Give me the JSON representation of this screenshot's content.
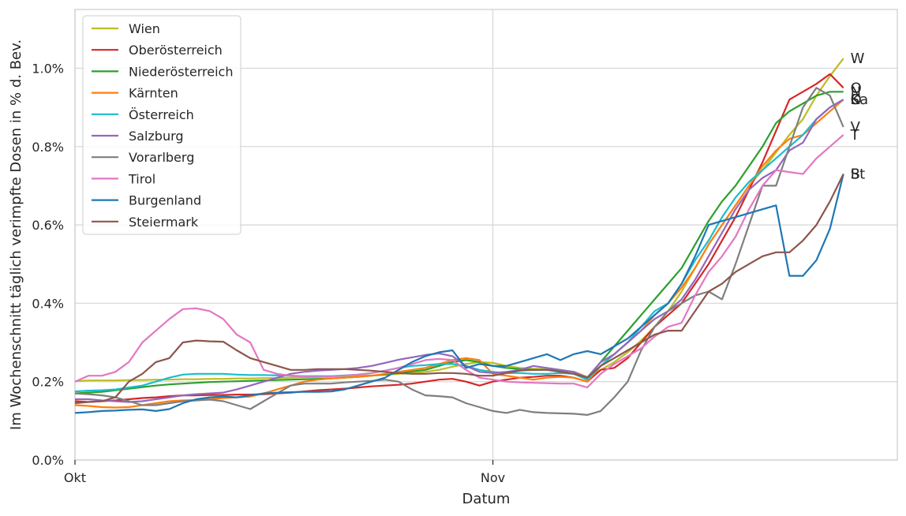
{
  "chart_data": {
    "type": "line",
    "xlabel": "Datum",
    "ylabel": "Im Wochenschnitt täglich verimpfte Dosen in % d. Bev.",
    "x_start": "2021-10-01",
    "x_end": "2021-12-01",
    "ylim": [
      0,
      1.15
    ],
    "yticks": [
      0.0,
      0.2,
      0.4,
      0.6,
      0.8,
      1.0
    ],
    "ytick_labels": [
      "0.0%",
      "0.2%",
      "0.4%",
      "0.6%",
      "0.8%",
      "1.0%"
    ],
    "xticks": [
      {
        "date": "2021-10-01",
        "label": "Okt"
      },
      {
        "date": "2021-11-01",
        "label": "Nov"
      }
    ],
    "grid": true,
    "legend_position": "top-left",
    "x": [
      "2021-10-01",
      "2021-10-02",
      "2021-10-03",
      "2021-10-04",
      "2021-10-05",
      "2021-10-06",
      "2021-10-07",
      "2021-10-08",
      "2021-10-09",
      "2021-10-10",
      "2021-10-11",
      "2021-10-12",
      "2021-10-13",
      "2021-10-14",
      "2021-10-15",
      "2021-10-16",
      "2021-10-17",
      "2021-10-18",
      "2021-10-19",
      "2021-10-20",
      "2021-10-21",
      "2021-10-22",
      "2021-10-23",
      "2021-10-24",
      "2021-10-25",
      "2021-10-26",
      "2021-10-27",
      "2021-10-28",
      "2021-10-29",
      "2021-10-30",
      "2021-10-31",
      "2021-11-01",
      "2021-11-02",
      "2021-11-03",
      "2021-11-04",
      "2021-11-05",
      "2021-11-06",
      "2021-11-07",
      "2021-11-08",
      "2021-11-09",
      "2021-11-10",
      "2021-11-11",
      "2021-11-12",
      "2021-11-13",
      "2021-11-14",
      "2021-11-15",
      "2021-11-16",
      "2021-11-17",
      "2021-11-18",
      "2021-11-19",
      "2021-11-20",
      "2021-11-21",
      "2021-11-22",
      "2021-11-23",
      "2021-11-24",
      "2021-11-25",
      "2021-11-26",
      "2021-11-27"
    ],
    "series": [
      {
        "name": "Wien",
        "color": "#bcbd22",
        "end_label": "W",
        "values": [
          0.201,
          0.203,
          0.203,
          0.203,
          0.204,
          0.204,
          0.205,
          0.205,
          0.206,
          0.206,
          0.207,
          0.207,
          0.208,
          0.208,
          0.209,
          0.209,
          0.21,
          0.211,
          0.212,
          0.213,
          0.214,
          0.215,
          0.216,
          0.218,
          0.22,
          0.222,
          0.225,
          0.23,
          0.238,
          0.245,
          0.25,
          0.248,
          0.24,
          0.235,
          0.233,
          0.232,
          0.23,
          0.225,
          0.212,
          0.23,
          0.25,
          0.275,
          0.305,
          0.34,
          0.38,
          0.43,
          0.49,
          0.55,
          0.6,
          0.65,
          0.7,
          0.74,
          0.785,
          0.83,
          0.87,
          0.93,
          0.98,
          1.025
        ]
      },
      {
        "name": "Oberösterreich",
        "color": "#d62728",
        "end_label": "O",
        "values": [
          0.15,
          0.148,
          0.15,
          0.152,
          0.155,
          0.158,
          0.16,
          0.163,
          0.165,
          0.165,
          0.166,
          0.166,
          0.167,
          0.167,
          0.168,
          0.17,
          0.172,
          0.175,
          0.178,
          0.18,
          0.182,
          0.185,
          0.188,
          0.19,
          0.192,
          0.195,
          0.2,
          0.205,
          0.207,
          0.2,
          0.19,
          0.2,
          0.205,
          0.21,
          0.212,
          0.215,
          0.215,
          0.21,
          0.2,
          0.23,
          0.235,
          0.26,
          0.3,
          0.34,
          0.37,
          0.4,
          0.45,
          0.5,
          0.56,
          0.62,
          0.69,
          0.76,
          0.84,
          0.92,
          0.94,
          0.96,
          0.985,
          0.95
        ]
      },
      {
        "name": "Niederösterreich",
        "color": "#2ca02c",
        "end_label": "N",
        "values": [
          0.17,
          0.172,
          0.174,
          0.178,
          0.182,
          0.186,
          0.19,
          0.193,
          0.195,
          0.197,
          0.199,
          0.2,
          0.201,
          0.202,
          0.203,
          0.204,
          0.205,
          0.206,
          0.207,
          0.208,
          0.21,
          0.212,
          0.215,
          0.218,
          0.222,
          0.226,
          0.23,
          0.24,
          0.25,
          0.255,
          0.25,
          0.24,
          0.235,
          0.232,
          0.23,
          0.23,
          0.228,
          0.225,
          0.21,
          0.25,
          0.29,
          0.33,
          0.37,
          0.41,
          0.45,
          0.49,
          0.55,
          0.61,
          0.66,
          0.7,
          0.75,
          0.8,
          0.86,
          0.89,
          0.91,
          0.93,
          0.94,
          0.94
        ]
      },
      {
        "name": "Kärnten",
        "color": "#ff7f0e",
        "end_label": "K",
        "values": [
          0.14,
          0.138,
          0.135,
          0.134,
          0.135,
          0.14,
          0.145,
          0.15,
          0.152,
          0.153,
          0.155,
          0.158,
          0.16,
          0.162,
          0.17,
          0.18,
          0.19,
          0.2,
          0.205,
          0.208,
          0.21,
          0.212,
          0.215,
          0.22,
          0.225,
          0.23,
          0.235,
          0.245,
          0.255,
          0.26,
          0.255,
          0.22,
          0.215,
          0.21,
          0.205,
          0.21,
          0.212,
          0.21,
          0.2,
          0.24,
          0.27,
          0.3,
          0.33,
          0.37,
          0.4,
          0.44,
          0.49,
          0.55,
          0.6,
          0.65,
          0.7,
          0.75,
          0.79,
          0.82,
          0.83,
          0.86,
          0.89,
          0.92
        ]
      },
      {
        "name": "Österreich",
        "color": "#17becf",
        "end_label": "Ö",
        "values": [
          0.175,
          0.177,
          0.178,
          0.18,
          0.185,
          0.19,
          0.2,
          0.21,
          0.218,
          0.22,
          0.22,
          0.22,
          0.218,
          0.217,
          0.217,
          0.216,
          0.215,
          0.214,
          0.214,
          0.214,
          0.216,
          0.218,
          0.222,
          0.228,
          0.235,
          0.24,
          0.242,
          0.245,
          0.245,
          0.24,
          0.23,
          0.225,
          0.222,
          0.222,
          0.22,
          0.22,
          0.222,
          0.22,
          0.205,
          0.24,
          0.27,
          0.3,
          0.34,
          0.38,
          0.4,
          0.45,
          0.51,
          0.56,
          0.62,
          0.67,
          0.71,
          0.74,
          0.77,
          0.8,
          0.83,
          0.87,
          0.9,
          0.92
        ]
      },
      {
        "name": "Salzburg",
        "color": "#9467bd",
        "end_label": "Sa",
        "values": [
          0.155,
          0.155,
          0.152,
          0.15,
          0.148,
          0.15,
          0.155,
          0.16,
          0.165,
          0.168,
          0.17,
          0.172,
          0.18,
          0.19,
          0.2,
          0.21,
          0.22,
          0.225,
          0.228,
          0.23,
          0.232,
          0.235,
          0.24,
          0.248,
          0.256,
          0.262,
          0.268,
          0.272,
          0.265,
          0.24,
          0.225,
          0.222,
          0.225,
          0.23,
          0.24,
          0.235,
          0.23,
          0.225,
          0.21,
          0.25,
          0.27,
          0.3,
          0.33,
          0.36,
          0.38,
          0.41,
          0.46,
          0.52,
          0.58,
          0.64,
          0.69,
          0.72,
          0.74,
          0.79,
          0.81,
          0.87,
          0.9,
          0.92
        ]
      },
      {
        "name": "Vorarlberg",
        "color": "#7f7f7f",
        "end_label": "V",
        "values": [
          0.17,
          0.168,
          0.165,
          0.16,
          0.15,
          0.14,
          0.14,
          0.145,
          0.15,
          0.152,
          0.154,
          0.15,
          0.14,
          0.13,
          0.15,
          0.17,
          0.19,
          0.195,
          0.195,
          0.195,
          0.198,
          0.2,
          0.202,
          0.205,
          0.2,
          0.18,
          0.165,
          0.163,
          0.16,
          0.145,
          0.135,
          0.125,
          0.12,
          0.128,
          0.122,
          0.12,
          0.119,
          0.118,
          0.115,
          0.125,
          0.16,
          0.2,
          0.28,
          0.34,
          0.38,
          0.4,
          0.42,
          0.43,
          0.41,
          0.5,
          0.6,
          0.7,
          0.7,
          0.8,
          0.9,
          0.95,
          0.93,
          0.85
        ]
      },
      {
        "name": "Tirol",
        "color": "#e377c2",
        "end_label": "T",
        "values": [
          0.2,
          0.215,
          0.215,
          0.225,
          0.25,
          0.3,
          0.33,
          0.36,
          0.385,
          0.387,
          0.38,
          0.36,
          0.32,
          0.3,
          0.23,
          0.22,
          0.215,
          0.213,
          0.212,
          0.213,
          0.215,
          0.218,
          0.222,
          0.228,
          0.235,
          0.245,
          0.255,
          0.258,
          0.255,
          0.23,
          0.21,
          0.205,
          0.2,
          0.198,
          0.197,
          0.196,
          0.195,
          0.195,
          0.185,
          0.22,
          0.245,
          0.265,
          0.285,
          0.315,
          0.34,
          0.35,
          0.42,
          0.48,
          0.52,
          0.57,
          0.64,
          0.7,
          0.74,
          0.735,
          0.73,
          0.77,
          0.8,
          0.83
        ]
      },
      {
        "name": "Burgenland",
        "color": "#1f77b4",
        "end_label": "B",
        "values": [
          0.12,
          0.122,
          0.125,
          0.126,
          0.128,
          0.129,
          0.125,
          0.13,
          0.145,
          0.155,
          0.16,
          0.162,
          0.16,
          0.165,
          0.17,
          0.172,
          0.173,
          0.174,
          0.174,
          0.175,
          0.18,
          0.19,
          0.2,
          0.21,
          0.23,
          0.25,
          0.265,
          0.275,
          0.28,
          0.235,
          0.245,
          0.24,
          0.24,
          0.25,
          0.26,
          0.27,
          0.255,
          0.27,
          0.278,
          0.27,
          0.29,
          0.31,
          0.34,
          0.37,
          0.4,
          0.45,
          0.52,
          0.6,
          0.61,
          0.62,
          0.63,
          0.64,
          0.65,
          0.47,
          0.47,
          0.51,
          0.59,
          0.73
        ]
      },
      {
        "name": "Steiermark",
        "color": "#8c564b",
        "end_label": "St",
        "values": [
          0.145,
          0.148,
          0.15,
          0.16,
          0.2,
          0.22,
          0.25,
          0.26,
          0.3,
          0.305,
          0.303,
          0.302,
          0.28,
          0.26,
          0.25,
          0.24,
          0.23,
          0.23,
          0.232,
          0.232,
          0.232,
          0.23,
          0.228,
          0.225,
          0.222,
          0.22,
          0.22,
          0.222,
          0.222,
          0.22,
          0.215,
          0.215,
          0.222,
          0.228,
          0.23,
          0.23,
          0.225,
          0.22,
          0.21,
          0.24,
          0.26,
          0.28,
          0.3,
          0.32,
          0.33,
          0.33,
          0.38,
          0.43,
          0.45,
          0.48,
          0.5,
          0.52,
          0.53,
          0.53,
          0.56,
          0.6,
          0.66,
          0.73
        ]
      }
    ]
  }
}
